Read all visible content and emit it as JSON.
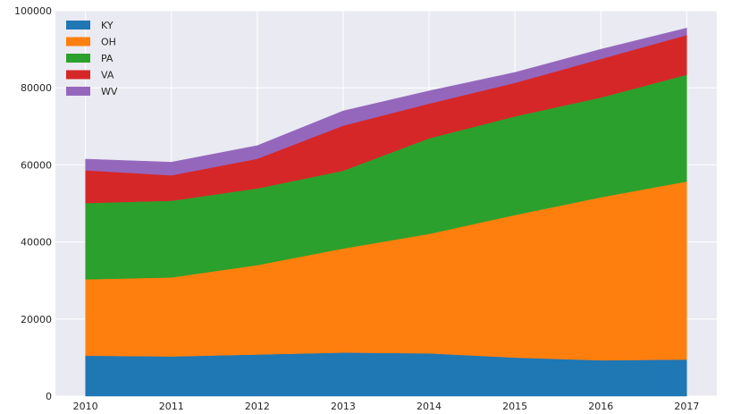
{
  "chart_data": {
    "type": "area",
    "stacked": true,
    "title": "",
    "xlabel": "",
    "ylabel": "",
    "x": [
      2010,
      2011,
      2012,
      2013,
      2014,
      2015,
      2016,
      2017
    ],
    "xlim": [
      2009.65,
      2017.35
    ],
    "ylim": [
      0,
      100000
    ],
    "yticks": [
      0,
      20000,
      40000,
      60000,
      80000,
      100000
    ],
    "xticks": [
      2010,
      2011,
      2012,
      2013,
      2014,
      2015,
      2016,
      2017
    ],
    "grid": true,
    "legend_position": "upper-left",
    "series": [
      {
        "name": "KY",
        "color": "#1f77b4",
        "values": [
          10500,
          10300,
          10800,
          11300,
          11100,
          10000,
          9300,
          9500
        ]
      },
      {
        "name": "OH",
        "color": "#ff7f0e",
        "values": [
          19800,
          20500,
          23200,
          27000,
          31000,
          37000,
          42300,
          46200
        ]
      },
      {
        "name": "PA",
        "color": "#2ca02c",
        "values": [
          19800,
          19900,
          19900,
          20200,
          24800,
          25600,
          25900,
          27700
        ]
      },
      {
        "name": "VA",
        "color": "#d62728",
        "values": [
          8500,
          6600,
          7700,
          11700,
          9000,
          8700,
          10000,
          10300
        ]
      },
      {
        "name": "WV",
        "color": "#9467bd",
        "values": [
          2900,
          3400,
          3400,
          3800,
          3300,
          2700,
          2500,
          1800
        ]
      }
    ]
  }
}
